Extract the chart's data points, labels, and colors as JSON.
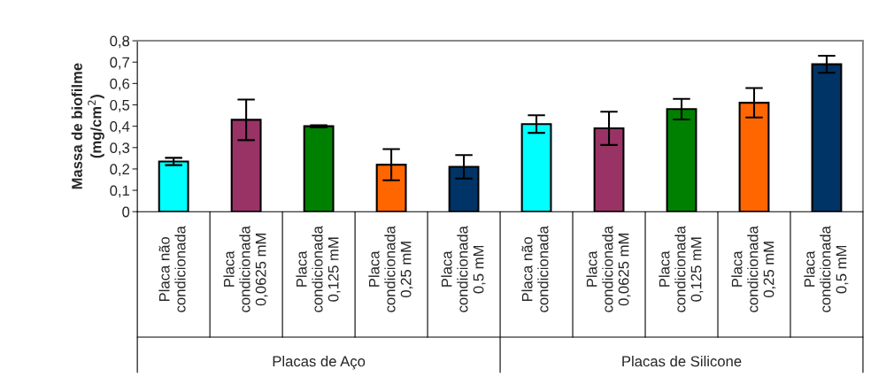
{
  "chart_data": {
    "type": "bar",
    "ylabel": "Massa de biofilme\n(mg/cm$^{2}$)",
    "categories": [
      "Placa não\ncondicionada",
      "Placa\ncondicionada\n0,0625 mM",
      "Placa\ncondicionada\n0,125 mM",
      "Placa\ncondicionada\n0,25 mM",
      "Placa\ncondicionada\n0,5 mM",
      "Placa não\ncondicionada",
      "Placa\ncondicionada\n0,0625 mM",
      "Placa\ncondicionada\n0,125 mM",
      "Placa\ncondicionada\n0,25 mM",
      "Placa\ncondicionada\n0,5 mM"
    ],
    "values": [
      0.235,
      0.43,
      0.4,
      0.22,
      0.21,
      0.41,
      0.39,
      0.48,
      0.51,
      0.69
    ],
    "errors": [
      0.017,
      0.095,
      0.005,
      0.073,
      0.055,
      0.041,
      0.078,
      0.048,
      0.069,
      0.04
    ],
    "colors": [
      "#00ffff",
      "#993366",
      "#008000",
      "#ff6600",
      "#003366",
      "#00ffff",
      "#993366",
      "#008000",
      "#ff6600",
      "#003366"
    ],
    "annotations": [
      "Placas de Aço",
      "Placas de Silicone"
    ],
    "ylim": [
      0,
      0.8
    ],
    "yticks": [
      0,
      {
        "value": 0.1,
        "label": "0,1"
      },
      {
        "value": 0.2,
        "label": "0,2"
      },
      {
        "value": 0.3,
        "label": "0,3"
      },
      {
        "value": 0.4,
        "label": "0,4"
      },
      {
        "value": 0.5,
        "label": "0,5"
      },
      {
        "value": 0.6,
        "label": "0,6"
      },
      {
        "value": 0.7,
        "label": "0,7"
      },
      {
        "value": 0.8,
        "label": "0,8"
      }
    ],
    "grid": false
  }
}
